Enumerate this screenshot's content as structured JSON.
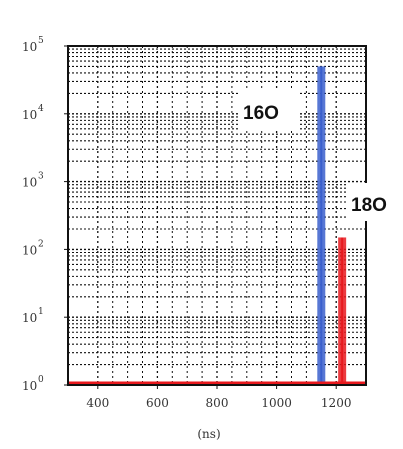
{
  "chart_data": {
    "type": "bar",
    "title": "",
    "xlabel": "(ns)",
    "ylabel": "",
    "x_scale": "linear",
    "y_scale": "log",
    "xlim": [
      300,
      1300
    ],
    "ylim": [
      1,
      100000
    ],
    "x_ticks": [
      400,
      600,
      800,
      1000,
      1200
    ],
    "x_tick_labels": [
      "400",
      "600",
      "800",
      "1000",
      "1200"
    ],
    "y_ticks": [
      {
        "base": "10",
        "exp": "0",
        "value": 1
      },
      {
        "base": "10",
        "exp": "1",
        "value": 10
      },
      {
        "base": "10",
        "exp": "2",
        "value": 100
      },
      {
        "base": "10",
        "exp": "3",
        "value": 1000
      },
      {
        "base": "10",
        "exp": "4",
        "value": 10000
      },
      {
        "base": "10",
        "exp": "5",
        "value": 100000
      }
    ],
    "grid": true,
    "series": [
      {
        "color": "#3a5fcd",
        "x": 1150,
        "value": 50000,
        "annotation": "16O"
      },
      {
        "color": "#e8191e",
        "x": 1220,
        "value": 150,
        "annotation": "18O"
      }
    ],
    "baseline_color": "#e8191e"
  }
}
